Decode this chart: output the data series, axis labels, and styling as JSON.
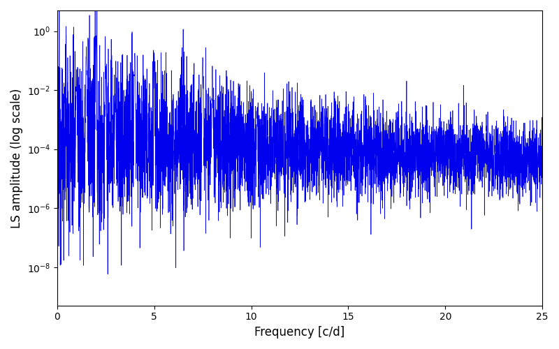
{
  "title": "",
  "xlabel": "Frequency [c/d]",
  "ylabel": "LS amplitude (log scale)",
  "xlim": [
    0,
    25
  ],
  "line_color": "#0000EE",
  "line_width": 0.5,
  "background_color": "#ffffff",
  "figsize": [
    8.0,
    5.0
  ],
  "dpi": 100,
  "seed": 12345,
  "n_points": 5000,
  "freq_max": 25.0,
  "yticks": [
    1e-08,
    1e-06,
    0.0001,
    0.01,
    1.0
  ],
  "ylim_bottom": 5e-10,
  "ylim_top": 5.0
}
